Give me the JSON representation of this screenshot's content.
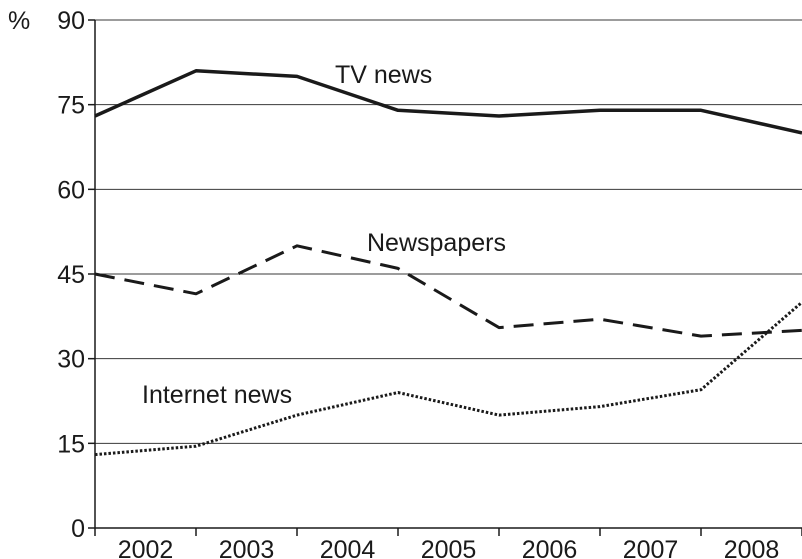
{
  "chart_data": {
    "type": "line",
    "title": "",
    "xlabel": "",
    "ylabel": "%",
    "ylim": [
      0,
      90
    ],
    "yticks": [
      0,
      15,
      30,
      45,
      60,
      75,
      90
    ],
    "categories": [
      "2002",
      "2003",
      "2004",
      "2005",
      "2006",
      "2007",
      "2008"
    ],
    "grid": true,
    "series": [
      {
        "name": "TV news",
        "style": "solid",
        "color": "#1a1a1a",
        "x": [
          2001.5,
          2002.5,
          2003.5,
          2004.5,
          2005.5,
          2006.5,
          2007.5,
          2008.5
        ],
        "values": [
          73,
          81,
          80,
          74,
          73,
          74,
          74,
          70
        ]
      },
      {
        "name": "Newspapers",
        "style": "dashed",
        "color": "#1a1a1a",
        "x": [
          2001.5,
          2002.5,
          2003.5,
          2004.5,
          2005.5,
          2006.5,
          2007.5,
          2008.5
        ],
        "values": [
          45,
          41.5,
          50,
          46,
          35.5,
          37,
          34,
          35
        ]
      },
      {
        "name": "Internet news",
        "style": "dotted",
        "color": "#1a1a1a",
        "x": [
          2001.5,
          2002.5,
          2003.5,
          2004.5,
          2005.5,
          2006.5,
          2007.5,
          2008.5
        ],
        "values": [
          13,
          14.5,
          20,
          24,
          20,
          21.5,
          24.5,
          40
        ]
      }
    ]
  }
}
